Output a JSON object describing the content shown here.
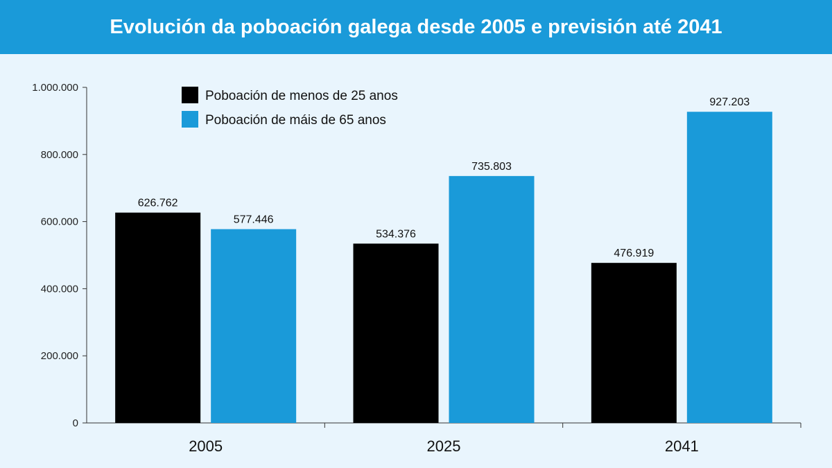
{
  "header": {
    "title": "Evolución da poboación galega desde 2005 e previsión até 2041"
  },
  "colors": {
    "header_bg": "#1a9ad9",
    "background": "#e9f5fd",
    "series_under25": "#000000",
    "series_over65": "#1a9ad9"
  },
  "chart_data": {
    "type": "bar",
    "title": "Evolución da poboación galega desde 2005 e previsión até 2041",
    "xlabel": "",
    "ylabel": "",
    "categories": [
      "2005",
      "2025",
      "2041"
    ],
    "series": [
      {
        "name": "Poboación de menos de 25 anos",
        "color": "#000000",
        "values": [
          626762,
          534376,
          476919
        ],
        "labels": [
          "626.762",
          "534.376",
          "476.919"
        ]
      },
      {
        "name": "Poboación de máis de 65 anos",
        "color": "#1a9ad9",
        "values": [
          577446,
          735803,
          927203
        ],
        "labels": [
          "577.446",
          "735.803",
          "927.203"
        ]
      }
    ],
    "ylim": [
      0,
      1000000
    ],
    "yticks": [
      0,
      200000,
      400000,
      600000,
      800000,
      1000000
    ],
    "ytick_labels": [
      "0",
      "200.000",
      "400.000",
      "600.000",
      "800.000",
      "1.000.000"
    ],
    "grid": false,
    "legend": "top-left"
  }
}
